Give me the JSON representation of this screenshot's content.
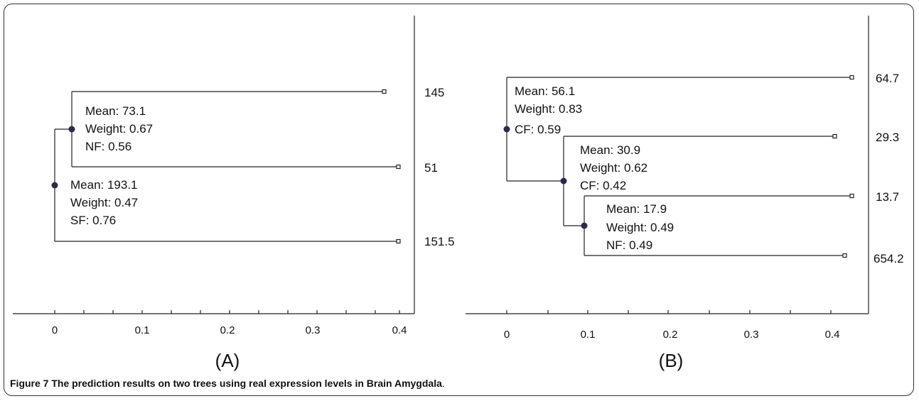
{
  "caption": {
    "bold": "Figure 7 The prediction results on two trees using real expression levels in Brain Amygdala",
    "tail": "."
  },
  "panels": [
    {
      "id": "A",
      "label": "(A)",
      "axis": {
        "ticks": [
          "0",
          "0.1",
          "0.2",
          "0.3",
          "0.4"
        ],
        "range": [
          0,
          0.4
        ]
      },
      "leaves": [
        {
          "value": "145",
          "distance": 0.37
        },
        {
          "value": "51",
          "distance": 0.4
        },
        {
          "value": "151.5",
          "distance": 0.4
        }
      ],
      "nodes": [
        {
          "lines": [
            "Mean: 193.1",
            "Weight: 0.47",
            "SF: 0.76"
          ],
          "distance": 0.0
        },
        {
          "lines": [
            "Mean: 73.1",
            "Weight: 0.67",
            "NF: 0.56"
          ],
          "distance": 0.02
        }
      ]
    },
    {
      "id": "B",
      "label": "(B)",
      "axis": {
        "ticks": [
          "0",
          "0.1",
          "0.2",
          "0.3",
          "0.4"
        ],
        "range": [
          0,
          0.4
        ]
      },
      "leaves": [
        {
          "value": "64.7",
          "distance": 0.42
        },
        {
          "value": "29.3",
          "distance": 0.4
        },
        {
          "value": "13.7",
          "distance": 0.42
        },
        {
          "value": "654.2",
          "distance": 0.41
        }
      ],
      "nodes": [
        {
          "lines": [
            "Mean: 56.1",
            "Weight: 0.83",
            "CF: 0.59"
          ],
          "distance": 0.0
        },
        {
          "lines": [
            "Mean: 30.9",
            "Weight: 0.62",
            "CF: 0.42"
          ],
          "distance": 0.07
        },
        {
          "lines": [
            "Mean: 17.9",
            "Weight: 0.49",
            "NF: 0.49"
          ],
          "distance": 0.095
        }
      ]
    }
  ]
}
